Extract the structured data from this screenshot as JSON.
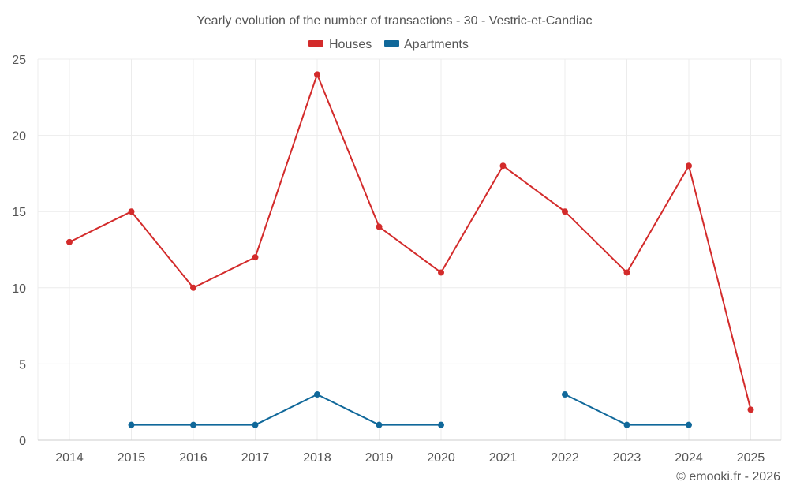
{
  "chart_data": {
    "type": "line",
    "title": "Yearly evolution of the number of transactions - 30 - Vestric-et-Candiac",
    "categories": [
      "2014",
      "2015",
      "2016",
      "2017",
      "2018",
      "2019",
      "2020",
      "2021",
      "2022",
      "2023",
      "2024",
      "2025"
    ],
    "series": [
      {
        "name": "Houses",
        "color": "#d32b2b",
        "values": [
          13,
          15,
          10,
          12,
          24,
          14,
          11,
          18,
          15,
          11,
          18,
          2
        ]
      },
      {
        "name": "Apartments",
        "color": "#10689a",
        "values": [
          null,
          1,
          1,
          1,
          3,
          1,
          1,
          null,
          3,
          1,
          1,
          null
        ]
      }
    ],
    "xlabel": "",
    "ylabel": "",
    "ylim": [
      0,
      25
    ],
    "yticks": [
      "0",
      "5",
      "10",
      "15",
      "20",
      "25"
    ],
    "grid": true,
    "legend": "top-center"
  },
  "footer": "© emooki.fr - 2026"
}
